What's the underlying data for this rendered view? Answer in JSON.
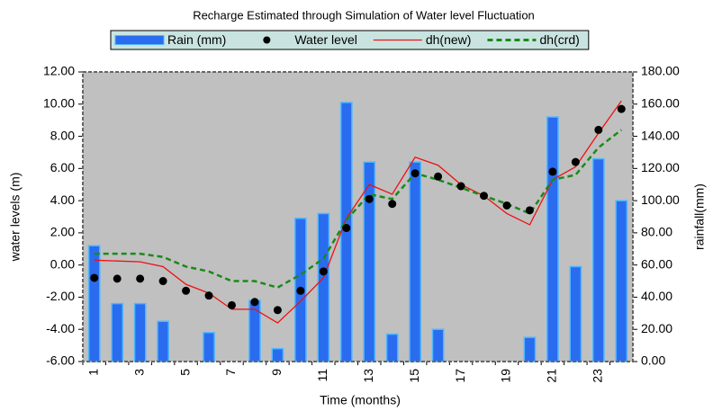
{
  "chart_data": {
    "type": "combo",
    "title": "Recharge Estimated through Simulation of Water level Fluctuation",
    "x_label": "Time (months)",
    "y_label": "water levels (m)",
    "y2_label": "rainfall(mm)",
    "legend": "top",
    "grid": false,
    "categories": [
      "1",
      null,
      "3",
      null,
      "5",
      null,
      "7",
      null,
      "9",
      null,
      "11",
      null,
      "13",
      null,
      "15",
      null,
      "17",
      null,
      "19",
      null,
      "21",
      null,
      "23",
      null
    ],
    "ylim": [
      -6,
      12
    ],
    "yticks": [
      {
        "value": -6,
        "label": "-6.00"
      },
      {
        "value": -4,
        "label": "-4.00"
      },
      {
        "value": -2,
        "label": "-2.00"
      },
      {
        "value": 0,
        "label": "0.00"
      },
      {
        "value": 2,
        "label": "2.00"
      },
      {
        "value": 4,
        "label": "4.00"
      },
      {
        "value": 6,
        "label": "6.00"
      },
      {
        "value": 8,
        "label": "8.00"
      },
      {
        "value": 10,
        "label": "10.00"
      },
      {
        "value": 12,
        "label": "12.00"
      }
    ],
    "y2lim": [
      0,
      180
    ],
    "y2ticks": [
      {
        "value": 0,
        "label": "0.00"
      },
      {
        "value": 20,
        "label": "20.00"
      },
      {
        "value": 40,
        "label": "40.00"
      },
      {
        "value": 60,
        "label": "60.00"
      },
      {
        "value": 80,
        "label": "80.00"
      },
      {
        "value": 100,
        "label": "100.00"
      },
      {
        "value": 120,
        "label": "120.00"
      },
      {
        "value": 140,
        "label": "140.00"
      },
      {
        "value": 160,
        "label": "160.00"
      },
      {
        "value": 180,
        "label": "180.00"
      }
    ],
    "series": [
      {
        "name": "Rain (mm)",
        "type": "bar",
        "axis": "y2",
        "color": "#2a6cf0",
        "values": [
          72,
          36,
          36,
          25,
          0,
          18,
          0,
          38,
          8,
          89,
          92,
          161,
          124,
          17,
          124,
          20,
          0,
          0,
          0,
          15,
          152,
          59,
          126,
          100
        ]
      },
      {
        "name": "Water level",
        "type": "scatter",
        "color": "#000000",
        "values": [
          -0.8,
          -0.85,
          -0.85,
          -1.0,
          -1.6,
          -1.9,
          -2.5,
          -2.3,
          -2.8,
          -1.6,
          -0.4,
          2.3,
          4.1,
          3.8,
          5.7,
          5.5,
          4.9,
          4.3,
          3.7,
          3.4,
          5.8,
          6.4,
          8.4,
          9.7
        ]
      },
      {
        "name": "dh(new)",
        "type": "line",
        "linestyle": "solid",
        "color": "#ee1111",
        "values": [
          0.3,
          0.25,
          0.2,
          -0.1,
          -1.2,
          -1.75,
          -2.75,
          -2.75,
          -3.6,
          -2.25,
          -0.8,
          2.9,
          5.0,
          4.4,
          6.7,
          6.2,
          5.0,
          4.3,
          3.2,
          2.5,
          5.3,
          6.1,
          8.2,
          10.2
        ]
      },
      {
        "name": "dh(crd)",
        "type": "line",
        "linestyle": "dashed",
        "color": "#1a8a1a",
        "values": [
          0.7,
          0.7,
          0.7,
          0.5,
          -0.1,
          -0.4,
          -1.0,
          -1.0,
          -1.4,
          -0.6,
          0.4,
          2.8,
          4.4,
          4.1,
          5.7,
          5.3,
          4.8,
          4.3,
          3.8,
          3.2,
          5.3,
          5.6,
          7.3,
          8.4
        ]
      }
    ]
  }
}
